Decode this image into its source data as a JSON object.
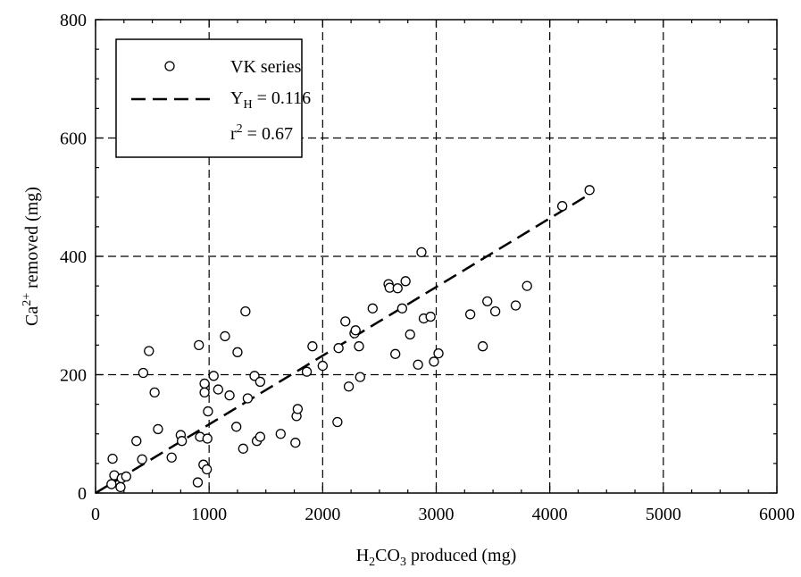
{
  "chart_data": {
    "type": "scatter",
    "title": "",
    "xlabel": {
      "main": "H",
      "sub1": "2",
      "mid": "CO",
      "sub2": "3",
      "rest": " produced (mg)"
    },
    "ylabel": {
      "main": "Ca",
      "sup": "2+",
      "rest": " removed (mg)"
    },
    "xlim": [
      0,
      6000
    ],
    "ylim": [
      0,
      800
    ],
    "xticks": [
      0,
      1000,
      2000,
      3000,
      4000,
      5000,
      6000
    ],
    "yticks": [
      0,
      200,
      400,
      600,
      800
    ],
    "grid": true,
    "legend": {
      "placement": "top-left",
      "entries": [
        {
          "label": "VK series",
          "marker": "open-circle"
        },
        {
          "label_main": "Y",
          "label_sub": "H",
          "label_rest": " = 0.116",
          "marker": "dashed-line"
        },
        {
          "label_main": "r",
          "label_sup": "2",
          "label_rest": " = 0.67",
          "marker": "none"
        }
      ]
    },
    "series": [
      {
        "name": "VK series",
        "kind": "scatter",
        "marker": "open-circle",
        "points": [
          [
            140,
            15
          ],
          [
            150,
            58
          ],
          [
            165,
            30
          ],
          [
            220,
            10
          ],
          [
            230,
            25
          ],
          [
            270,
            28
          ],
          [
            360,
            88
          ],
          [
            410,
            57
          ],
          [
            420,
            203
          ],
          [
            470,
            240
          ],
          [
            520,
            170
          ],
          [
            550,
            108
          ],
          [
            670,
            60
          ],
          [
            750,
            98
          ],
          [
            760,
            88
          ],
          [
            900,
            18
          ],
          [
            910,
            250
          ],
          [
            920,
            95
          ],
          [
            950,
            48
          ],
          [
            960,
            170
          ],
          [
            960,
            185
          ],
          [
            980,
            40
          ],
          [
            985,
            92
          ],
          [
            990,
            138
          ],
          [
            1040,
            198
          ],
          [
            1080,
            175
          ],
          [
            1140,
            265
          ],
          [
            1180,
            165
          ],
          [
            1240,
            112
          ],
          [
            1250,
            238
          ],
          [
            1300,
            75
          ],
          [
            1320,
            307
          ],
          [
            1340,
            160
          ],
          [
            1400,
            198
          ],
          [
            1420,
            88
          ],
          [
            1450,
            95
          ],
          [
            1450,
            188
          ],
          [
            1630,
            100
          ],
          [
            1760,
            85
          ],
          [
            1770,
            130
          ],
          [
            1780,
            142
          ],
          [
            1860,
            205
          ],
          [
            1910,
            248
          ],
          [
            2000,
            215
          ],
          [
            2130,
            120
          ],
          [
            2140,
            245
          ],
          [
            2200,
            290
          ],
          [
            2230,
            180
          ],
          [
            2280,
            270
          ],
          [
            2290,
            275
          ],
          [
            2320,
            248
          ],
          [
            2330,
            196
          ],
          [
            2440,
            312
          ],
          [
            2580,
            353
          ],
          [
            2590,
            347
          ],
          [
            2640,
            235
          ],
          [
            2660,
            346
          ],
          [
            2700,
            312
          ],
          [
            2730,
            358
          ],
          [
            2770,
            268
          ],
          [
            2840,
            217
          ],
          [
            2870,
            407
          ],
          [
            2890,
            295
          ],
          [
            2950,
            298
          ],
          [
            2980,
            222
          ],
          [
            3020,
            236
          ],
          [
            3300,
            302
          ],
          [
            3410,
            248
          ],
          [
            3450,
            324
          ],
          [
            3520,
            307
          ],
          [
            3700,
            317
          ],
          [
            3800,
            350
          ],
          [
            4110,
            485
          ],
          [
            4350,
            512
          ]
        ]
      },
      {
        "name": "Y_H = 0.116",
        "kind": "line",
        "style": "dashed",
        "points": [
          [
            0,
            0
          ],
          [
            4360,
            506
          ]
        ]
      }
    ]
  },
  "colors": {
    "axis": "#000000",
    "grid": "#000000",
    "marker_stroke": "#000000",
    "marker_fill": "#ffffff",
    "background": "#ffffff"
  }
}
